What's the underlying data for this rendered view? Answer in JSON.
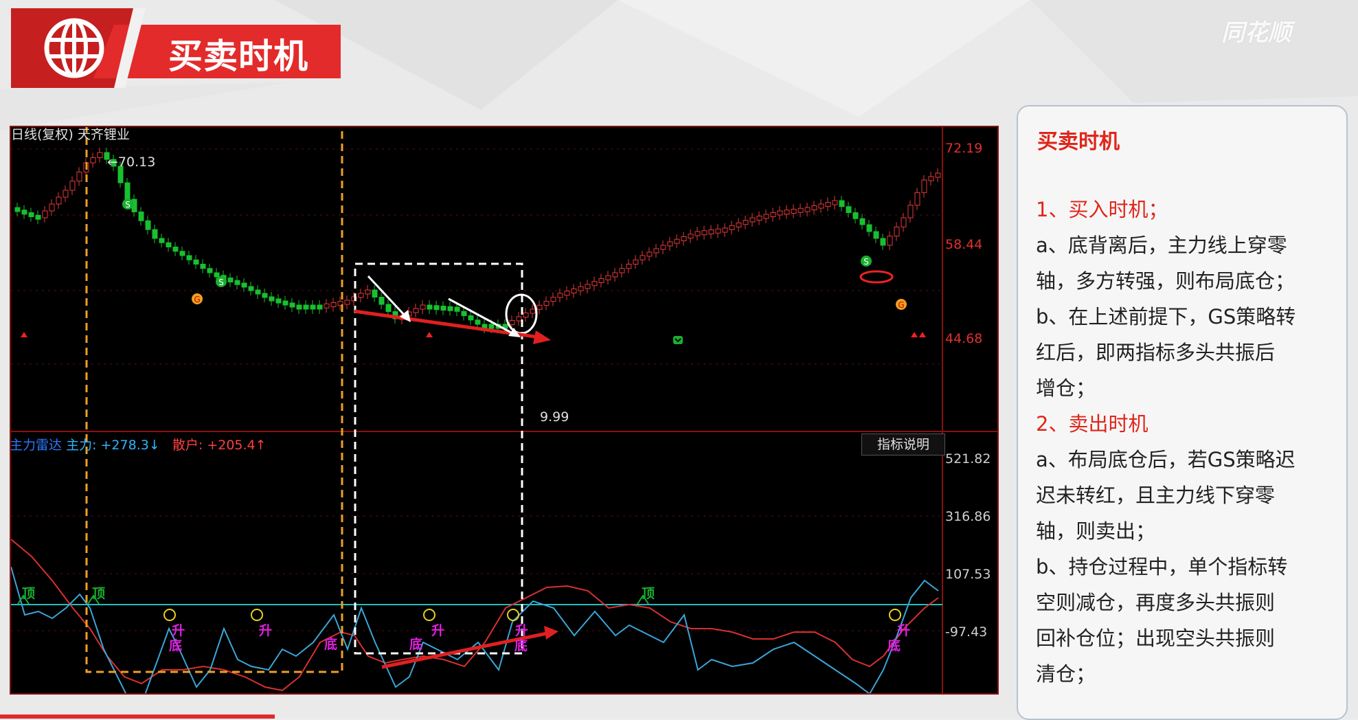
{
  "slide": {
    "title": "买卖时机",
    "brand": "同花顺",
    "colors": {
      "accent_red": "#e0251a",
      "chart_border": "#8d1010"
    }
  },
  "chart": {
    "stock_label": "日线(复权)  天齐锂业",
    "peak_label": "←70.13",
    "low_label": "9.99",
    "price_axis": [
      "72.19",
      "58.44",
      "44.68"
    ],
    "indicator": {
      "name": "主力雷达",
      "force_label": "主力: +278.3",
      "force_arrow": "↓",
      "retail_label": "散户: +205.4",
      "retail_arrow": "↑",
      "explain_button": "指标说明",
      "axis": [
        "521.82",
        "316.86",
        "107.53",
        "-97.43"
      ]
    },
    "annotations": {
      "top1": "顶",
      "top2": "顶",
      "top3": "顶",
      "up1": "升",
      "up2": "升",
      "up3": "升",
      "up4": "升",
      "up5": "升",
      "bottom1": "底",
      "bottom2": "底",
      "bottom3": "底",
      "bottom4": "底",
      "bottom5": "底"
    },
    "icons": {
      "s_marker": "S",
      "g_marker": "G"
    }
  },
  "panel": {
    "title": "买卖时机",
    "lines": [
      "1、买入时机；",
      "a、底背离后，主力线上穿零",
      "轴，多方转强，则布局底仓；",
      "b、在上述前提下，GS策略转",
      "红后，即两指标多头共振后",
      "增仓；",
      "2、卖出时机",
      "a、布局底仓后，若GS策略迟",
      "迟未转红，且主力线下穿零",
      "轴，则卖出；",
      "b、持仓过程中，单个指标转",
      "空则减仓，再度多头共振则",
      "回补仓位；出现空头共振则",
      "清仓；"
    ]
  }
}
